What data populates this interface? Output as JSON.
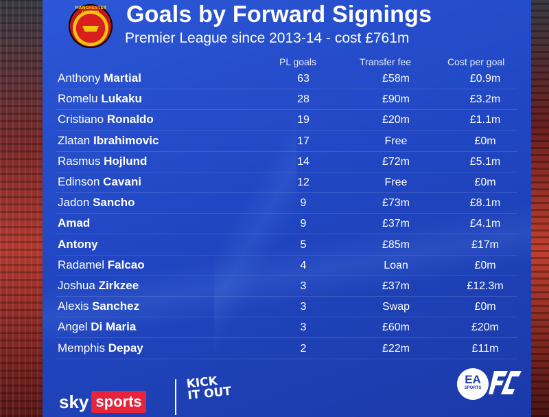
{
  "header": {
    "title": "Goals by Forward Signings",
    "subtitle": "Premier League since 2013-14 - cost £761m",
    "crest_text": "MANCHESTER UNITED"
  },
  "columns": {
    "goals": "PL goals",
    "fee": "Transfer fee",
    "cost": "Cost per goal"
  },
  "rows": [
    {
      "first": "Anthony",
      "last": "Martial",
      "goals": "63",
      "fee": "£58m",
      "cost": "£0.9m"
    },
    {
      "first": "Romelu",
      "last": "Lukaku",
      "goals": "28",
      "fee": "£90m",
      "cost": "£3.2m"
    },
    {
      "first": "Cristiano",
      "last": "Ronaldo",
      "goals": "19",
      "fee": "£20m",
      "cost": "£1.1m"
    },
    {
      "first": "Zlatan",
      "last": "Ibrahimovic",
      "goals": "17",
      "fee": "Free",
      "cost": "£0m"
    },
    {
      "first": "Rasmus",
      "last": "Hojlund",
      "goals": "14",
      "fee": "£72m",
      "cost": "£5.1m"
    },
    {
      "first": "Edinson",
      "last": "Cavani",
      "goals": "12",
      "fee": "Free",
      "cost": "£0m"
    },
    {
      "first": "Jadon",
      "last": "Sancho",
      "goals": "9",
      "fee": "£73m",
      "cost": "£8.1m"
    },
    {
      "first": "",
      "last": "Amad",
      "goals": "9",
      "fee": "£37m",
      "cost": "£4.1m"
    },
    {
      "first": "",
      "last": "Antony",
      "goals": "5",
      "fee": "£85m",
      "cost": "£17m"
    },
    {
      "first": "Radamel",
      "last": "Falcao",
      "goals": "4",
      "fee": "Loan",
      "cost": "£0m"
    },
    {
      "first": "Joshua",
      "last": "Zirkzee",
      "goals": "3",
      "fee": "£37m",
      "cost": "£12.3m"
    },
    {
      "first": "Alexis",
      "last": "Sanchez",
      "goals": "3",
      "fee": "Swap",
      "cost": "£0m"
    },
    {
      "first": "Angel",
      "last": "Di Maria",
      "goals": "3",
      "fee": "£60m",
      "cost": "£20m"
    },
    {
      "first": "Memphis",
      "last": "Depay",
      "goals": "2",
      "fee": "£22m",
      "cost": "£11m"
    }
  ],
  "footer": {
    "sky": "sky",
    "sports": "sports",
    "kick_it_out": "KICK IT OUT",
    "ea_text": "EA",
    "ea_sub": "SPORTS",
    "fc_text": "FC"
  },
  "icons": [
    "club-crest-icon",
    "sky-sports-logo",
    "kick-it-out-logo",
    "ea-sports-logo",
    "ea-fc-logo"
  ],
  "colors": {
    "board": "#2147c4",
    "sky_sports_red": "#e8233c",
    "crest_red": "#d81e1e",
    "crest_gold": "#f1c40f"
  }
}
